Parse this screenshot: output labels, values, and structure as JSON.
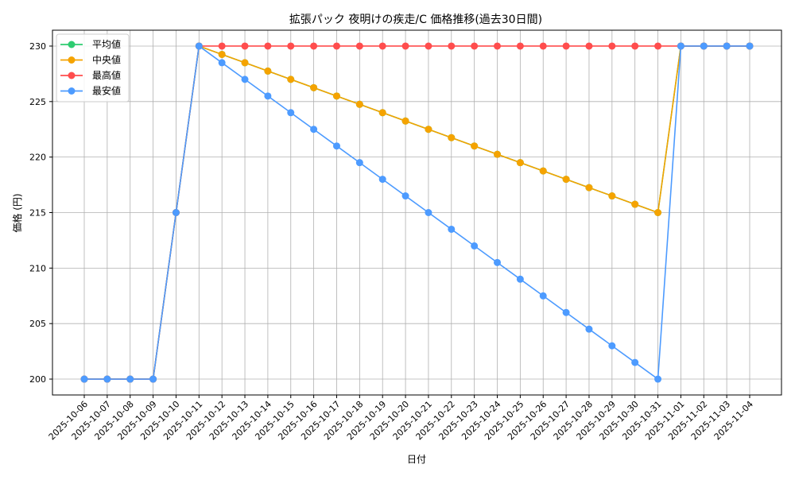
{
  "chart_data": {
    "type": "line",
    "title": "拡張パック 夜明けの疾走/C 価格推移(過去30日間)",
    "xlabel": "日付",
    "ylabel": "価格 (円)",
    "ylim": [
      198.57,
      231.43
    ],
    "yticks": [
      200,
      205,
      210,
      215,
      220,
      225,
      230
    ],
    "grid": true,
    "legend_position": "top-left",
    "x": [
      "2025-10-06",
      "2025-10-07",
      "2025-10-08",
      "2025-10-09",
      "2025-10-10",
      "2025-10-11",
      "2025-10-12",
      "2025-10-13",
      "2025-10-14",
      "2025-10-15",
      "2025-10-16",
      "2025-10-17",
      "2025-10-18",
      "2025-10-19",
      "2025-10-20",
      "2025-10-21",
      "2025-10-22",
      "2025-10-23",
      "2025-10-24",
      "2025-10-25",
      "2025-10-26",
      "2025-10-27",
      "2025-10-28",
      "2025-10-29",
      "2025-10-30",
      "2025-10-31",
      "2025-11-01",
      "2025-11-02",
      "2025-11-03",
      "2025-11-04"
    ],
    "series": [
      {
        "name": "平均値",
        "color": "#2ecc71",
        "values": [
          200,
          200,
          200,
          200,
          215,
          230,
          229.25,
          228.5,
          227.75,
          227,
          226.25,
          225.5,
          224.75,
          224,
          223.25,
          222.5,
          221.75,
          221,
          220.25,
          219.5,
          218.75,
          218,
          217.25,
          216.5,
          215.75,
          215,
          230,
          230,
          230,
          230
        ]
      },
      {
        "name": "中央値",
        "color": "#f5a300",
        "values": [
          200,
          200,
          200,
          200,
          215,
          230,
          229.25,
          228.5,
          227.75,
          227,
          226.25,
          225.5,
          224.75,
          224,
          223.25,
          222.5,
          221.75,
          221,
          220.25,
          219.5,
          218.75,
          218,
          217.25,
          216.5,
          215.75,
          215,
          230,
          230,
          230,
          230
        ]
      },
      {
        "name": "最高値",
        "color": "#ff4d4d",
        "values": [
          200,
          200,
          200,
          200,
          215,
          230,
          230,
          230,
          230,
          230,
          230,
          230,
          230,
          230,
          230,
          230,
          230,
          230,
          230,
          230,
          230,
          230,
          230,
          230,
          230,
          230,
          230,
          230,
          230,
          230
        ]
      },
      {
        "name": "最安値",
        "color": "#4d9bff",
        "values": [
          200,
          200,
          200,
          200,
          215,
          230,
          228.5,
          227,
          225.5,
          224,
          222.5,
          221,
          219.5,
          218,
          216.5,
          215,
          213.5,
          212,
          210.5,
          209,
          207.5,
          206,
          204.5,
          203,
          201.5,
          200,
          230,
          230,
          230,
          230
        ]
      }
    ]
  }
}
